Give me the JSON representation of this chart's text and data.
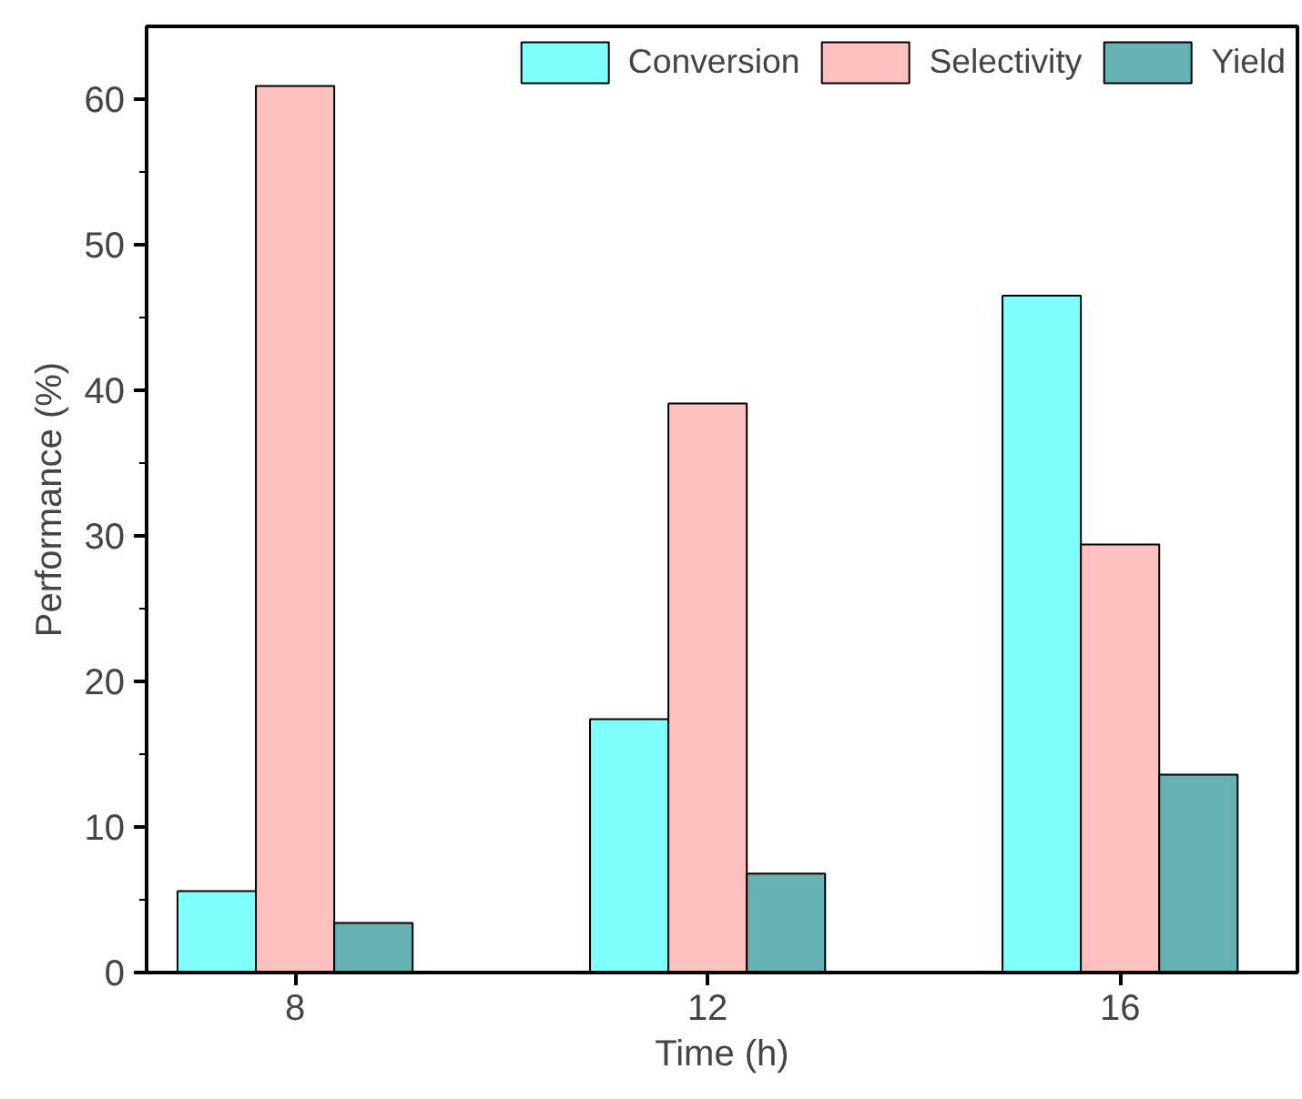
{
  "chart_data": {
    "type": "bar",
    "xlabel": "Time (h)",
    "ylabel": "Performance (%)",
    "categories": [
      "8",
      "12",
      "16"
    ],
    "series": [
      {
        "name": "Conversion",
        "color": "#80ffff",
        "values": [
          5.6,
          17.4,
          46.5
        ]
      },
      {
        "name": "Selectivity",
        "color": "#ffc0c0",
        "values": [
          60.9,
          39.1,
          29.4
        ]
      },
      {
        "name": "Yield",
        "color": "#66b2b2",
        "values": [
          3.4,
          6.8,
          13.6
        ]
      }
    ],
    "ylim": [
      0,
      65
    ],
    "yticks": [
      0,
      {
        "value": 5,
        "label": null
      },
      10,
      {
        "value": 15,
        "label": null
      },
      20,
      {
        "value": 25,
        "label": null
      },
      30,
      {
        "value": 35,
        "label": null
      },
      40,
      {
        "value": 45,
        "label": null
      },
      50,
      {
        "value": 55,
        "label": null
      },
      60
    ],
    "grid": false,
    "legend": "top right"
  }
}
